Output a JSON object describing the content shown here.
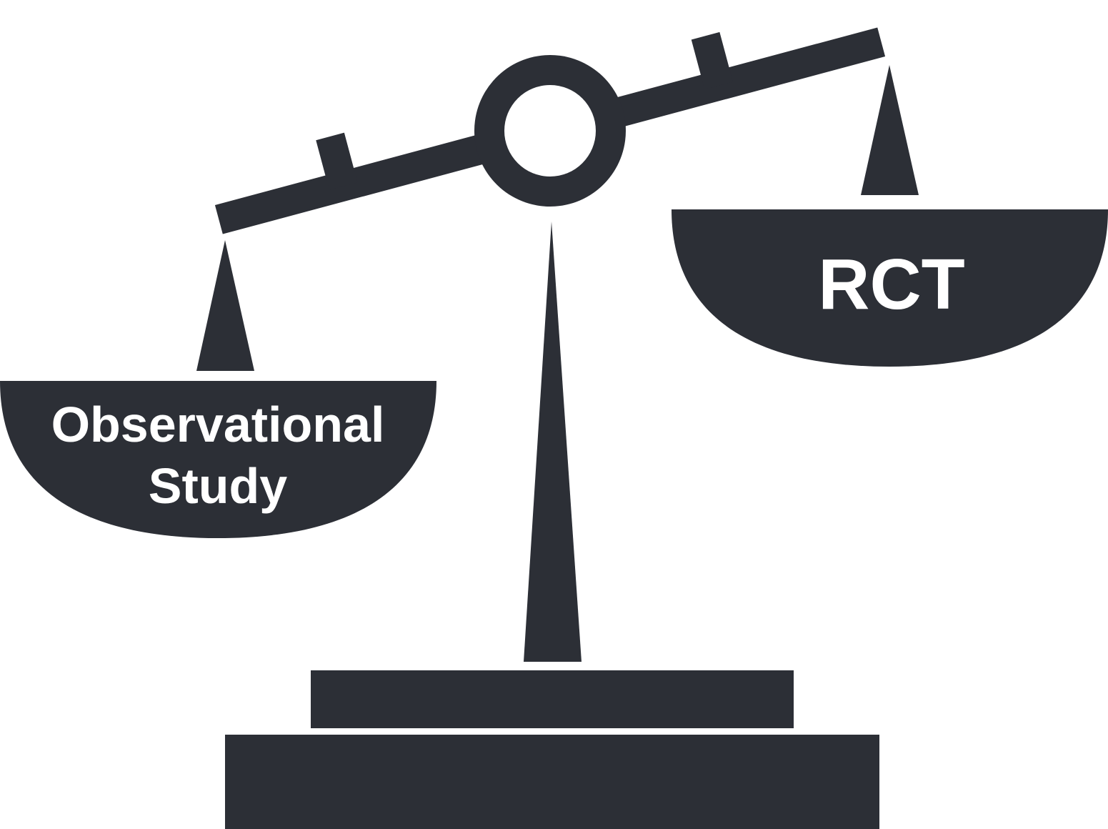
{
  "diagram": {
    "left_pan": {
      "label_line1": "Observational",
      "label_line2": "Study"
    },
    "right_pan": {
      "label": "RCT"
    },
    "colors": {
      "ink": "#2c2f36",
      "background": "#ffffff",
      "text": "#ffffff"
    },
    "icon": "balance-scale-icon"
  }
}
